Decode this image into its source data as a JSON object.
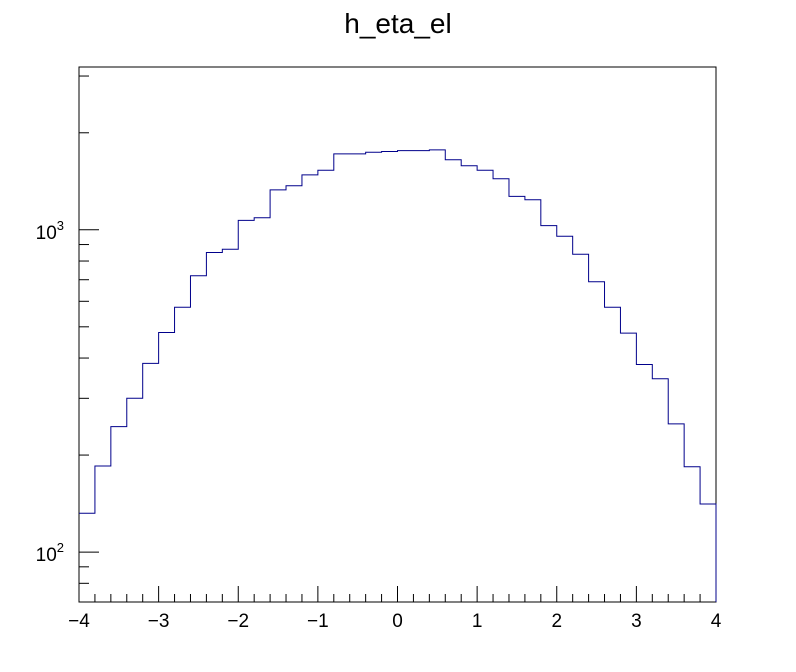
{
  "chart_data": {
    "type": "histogram",
    "title": "h_eta_el",
    "xlabel": "",
    "ylabel": "",
    "xlim": [
      -4,
      4
    ],
    "ylim": [
      70,
      3200
    ],
    "yscale": "log",
    "grid": false,
    "legend": "none",
    "line_color": "#00008b",
    "x_ticks": [
      "−4",
      "−3",
      "−2",
      "−1",
      "0",
      "1",
      "2",
      "3",
      "4"
    ],
    "x_tick_values": [
      -4,
      -3,
      -2,
      -1,
      0,
      1,
      2,
      3,
      4
    ],
    "y_ticks": [
      {
        "base": "10",
        "exp": "2",
        "value": 100
      },
      {
        "base": "10",
        "exp": "3",
        "value": 1000
      }
    ],
    "bin_edges_start": -4,
    "bin_width": 0.2,
    "values": [
      132,
      185,
      245,
      300,
      385,
      480,
      575,
      720,
      850,
      870,
      1070,
      1090,
      1330,
      1370,
      1480,
      1530,
      1720,
      1720,
      1740,
      1750,
      1760,
      1760,
      1770,
      1650,
      1580,
      1530,
      1440,
      1270,
      1240,
      1030,
      955,
      840,
      690,
      575,
      478,
      382,
      345,
      250,
      184,
      141
    ]
  }
}
